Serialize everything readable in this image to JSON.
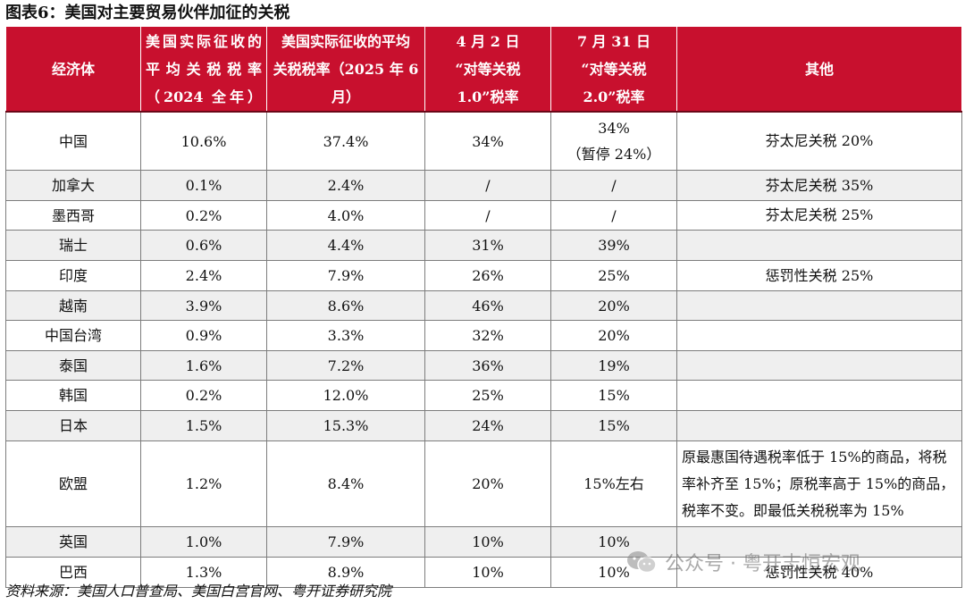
{
  "title": "图表6：美国对主要贸易伙伴加征的关税",
  "table": {
    "headers": [
      [
        "经济体"
      ],
      [
        "美国实际征收的",
        "平均关税税率",
        "（2024 全年）"
      ],
      [
        "美国实际征收的平均",
        "关税税率（2025 年 6",
        "月）"
      ],
      [
        "4 月 2 日",
        "“对等关税",
        "1.0”税率"
      ],
      [
        "7 月 31 日",
        "“对等关税",
        "2.0”税率"
      ],
      [
        "其他"
      ]
    ],
    "rows": [
      [
        "中国",
        "10.6%",
        "37.4%",
        "34%",
        "34%\n（暂停 24%）",
        "芬太尼关税 20%"
      ],
      [
        "加拿大",
        "0.1%",
        "2.4%",
        "/",
        "/",
        "芬太尼关税 35%"
      ],
      [
        "墨西哥",
        "0.2%",
        "4.0%",
        "/",
        "/",
        "芬太尼关税 25%"
      ],
      [
        "瑞士",
        "0.6%",
        "4.4%",
        "31%",
        "39%",
        ""
      ],
      [
        "印度",
        "2.4%",
        "7.9%",
        "26%",
        "25%",
        "惩罚性关税 25%"
      ],
      [
        "越南",
        "3.9%",
        "8.6%",
        "46%",
        "20%",
        ""
      ],
      [
        "中国台湾",
        "0.9%",
        "3.3%",
        "32%",
        "20%",
        ""
      ],
      [
        "泰国",
        "1.6%",
        "7.2%",
        "36%",
        "19%",
        ""
      ],
      [
        "韩国",
        "0.2%",
        "12.0%",
        "25%",
        "15%",
        ""
      ],
      [
        "日本",
        "1.5%",
        "15.3%",
        "24%",
        "15%",
        ""
      ],
      [
        "欧盟",
        "1.2%",
        "8.4%",
        "20%",
        "15%左右",
        "原最惠国待遇税率低于 15%的商品，将税率补齐至 15%；原税率高于 15%的商品，税率不变。即最低关税税率为 15%"
      ],
      [
        "英国",
        "1.0%",
        "7.9%",
        "10%",
        "10%",
        ""
      ],
      [
        "巴西",
        "1.3%",
        "8.9%",
        "10%",
        "10%",
        "惩罚性关税 40%"
      ]
    ]
  },
  "footer": "资料来源：美国人口普查局、美国白宫官网、粤开证券研究院",
  "watermark": {
    "icon": "wechat-logo-icon",
    "text": "公众号 · 粤开志恒宏观"
  },
  "colors": {
    "header_bg": "#c8102e",
    "header_text": "#ffffff",
    "alt_row_bg": "#efefef"
  }
}
